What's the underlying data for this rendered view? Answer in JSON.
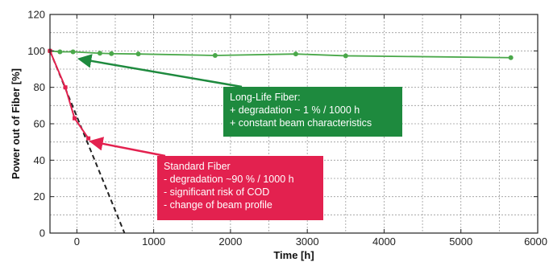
{
  "chart_data": {
    "type": "line",
    "xlabel": "Time [h]",
    "ylabel": "Power out of Fiber [%]",
    "xlim": [
      -350,
      6000
    ],
    "ylim": [
      0,
      120
    ],
    "x_ticks": [
      0,
      1000,
      2000,
      3000,
      4000,
      5000,
      6000
    ],
    "x_tick_labels": [
      "0",
      "1000",
      "2000",
      "3000",
      "4000",
      "5000",
      "6000"
    ],
    "y_ticks": [
      0,
      20,
      40,
      60,
      80,
      100,
      120
    ],
    "y_tick_labels": [
      "0",
      "20",
      "40",
      "60",
      "80",
      "100",
      "120"
    ],
    "grid": true,
    "series": [
      {
        "key": "long_life",
        "color": "#4aa84a",
        "x": [
          -350,
          -220,
          -50,
          300,
          450,
          800,
          1800,
          2850,
          3500,
          5650
        ],
        "y": [
          100,
          99.5,
          99.5,
          98.7,
          98.5,
          98.3,
          97.5,
          98.3,
          97.3,
          96.3
        ]
      },
      {
        "key": "standard",
        "color": "#e3214f",
        "x": [
          -350,
          -150,
          -30,
          150
        ],
        "y": [
          100,
          80,
          63,
          52
        ]
      },
      {
        "key": "standard_extrapolation",
        "style": "dashed",
        "color": "#222222",
        "x": [
          -350,
          620
        ],
        "y": [
          100,
          0
        ]
      }
    ],
    "annotations": [
      {
        "key": "long_life",
        "color": "#1e8a3e",
        "lines": [
          "Long-Life Fiber:",
          "+ degradation ~ 1 % / 1000 h",
          "+ constant beam characteristics"
        ],
        "arrow_to": [
          0,
          97.3
        ]
      },
      {
        "key": "standard",
        "color": "#e3214f",
        "lines": [
          "Standard Fiber",
          "- degradation ~90 % / 1000 h",
          "- significant risk of COD",
          "- change of beam profile"
        ],
        "arrow_to": [
          150,
          52
        ]
      }
    ]
  }
}
